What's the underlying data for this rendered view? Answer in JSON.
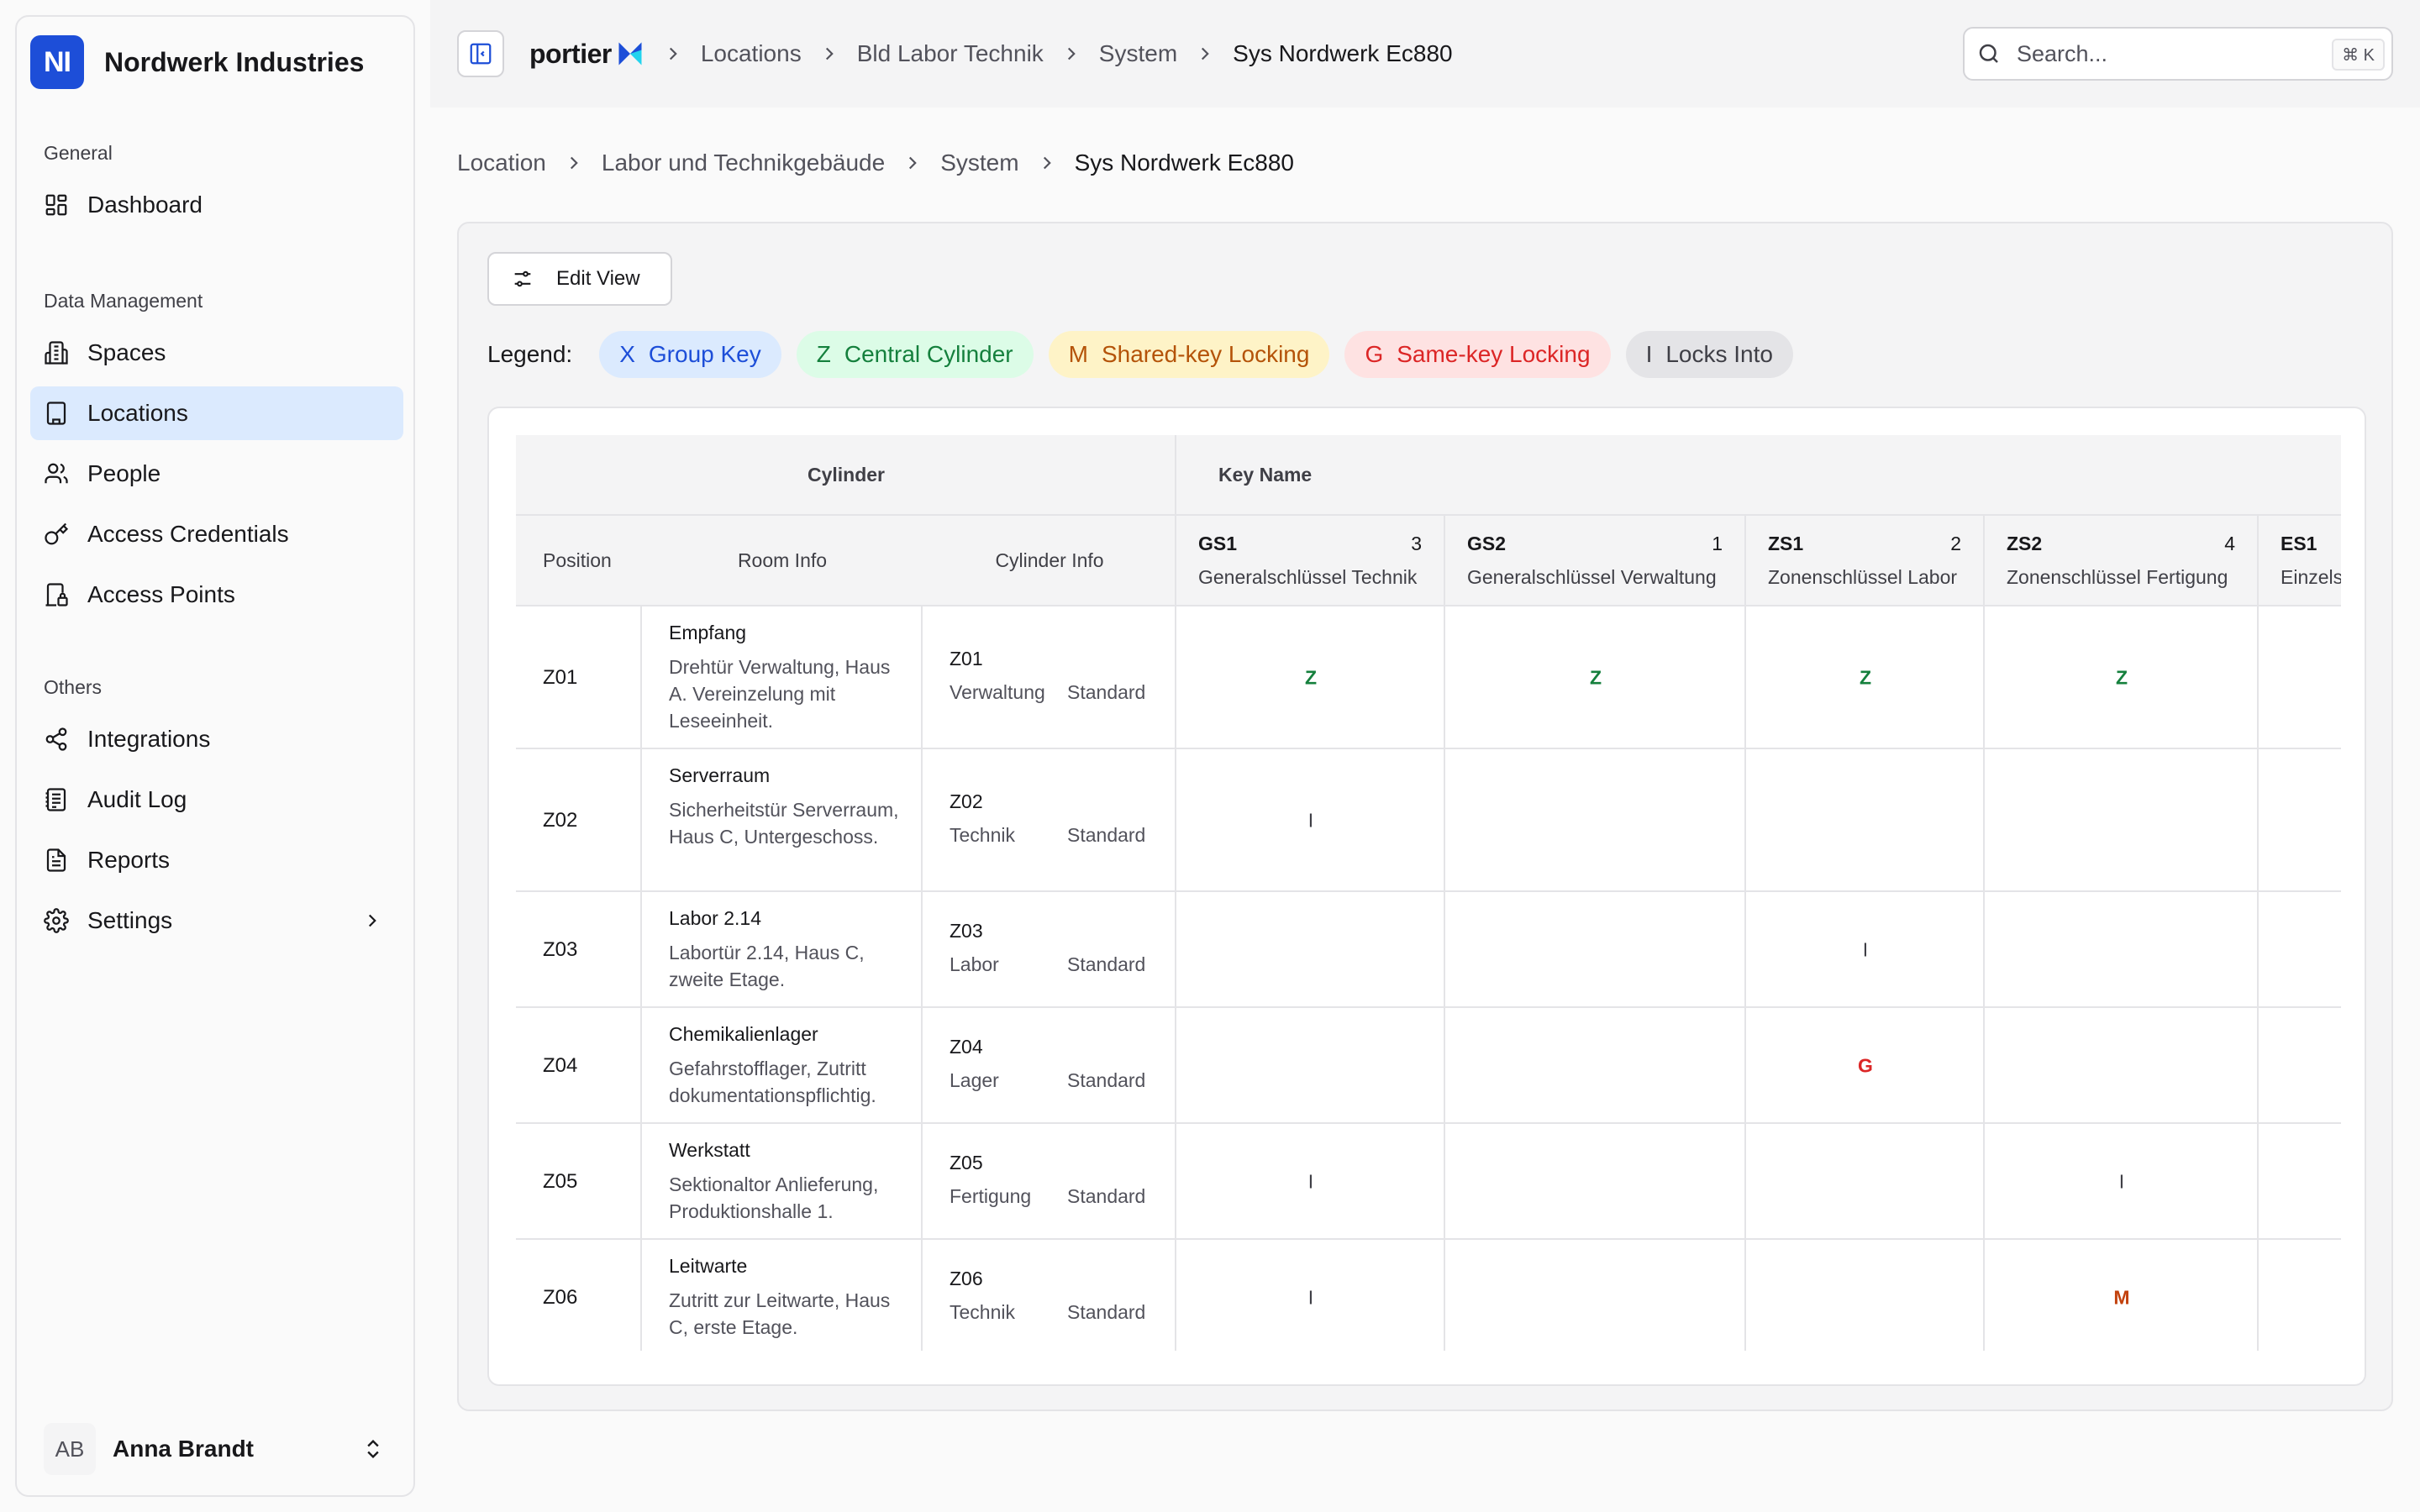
{
  "org": {
    "initials": "NI",
    "name": "Nordwerk Industries"
  },
  "nav": {
    "general": {
      "heading": "General",
      "items": [
        {
          "label": "Dashboard"
        }
      ]
    },
    "data": {
      "heading": "Data Management",
      "items": [
        {
          "label": "Spaces"
        },
        {
          "label": "Locations"
        },
        {
          "label": "People"
        },
        {
          "label": "Access Credentials"
        },
        {
          "label": "Access Points"
        }
      ]
    },
    "others": {
      "heading": "Others",
      "items": [
        {
          "label": "Integrations"
        },
        {
          "label": "Audit Log"
        },
        {
          "label": "Reports"
        },
        {
          "label": "Settings"
        }
      ]
    }
  },
  "user": {
    "initials": "AB",
    "name": "Anna Brandt"
  },
  "topbar": {
    "brand": "portier",
    "crumbs": [
      "Locations",
      "Bld Labor Technik",
      "System",
      "Sys Nordwerk Ec880"
    ],
    "search_placeholder": "Search...",
    "shortcut": "⌘ K"
  },
  "page_crumbs": [
    "Location",
    "Labor und Technikgebäude",
    "System",
    "Sys Nordwerk Ec880"
  ],
  "toolbar": {
    "edit_view": "Edit View"
  },
  "legend": {
    "label": "Legend:",
    "items": [
      {
        "code": "X",
        "label": "Group Key"
      },
      {
        "code": "Z",
        "label": "Central Cylinder"
      },
      {
        "code": "M",
        "label": "Shared-key Locking"
      },
      {
        "code": "G",
        "label": "Same-key Locking"
      },
      {
        "code": "I",
        "label": "Locks Into"
      }
    ]
  },
  "table": {
    "group_cylinder": "Cylinder",
    "group_key": "Key Name",
    "col_position": "Position",
    "col_room": "Room Info",
    "col_cylinder": "Cylinder Info",
    "keys": [
      {
        "code": "GS1",
        "count": "3",
        "name": "Generalschlüssel Technik"
      },
      {
        "code": "GS2",
        "count": "1",
        "name": "Generalschlüssel Verwaltung"
      },
      {
        "code": "ZS1",
        "count": "2",
        "name": "Zonenschlüssel Labor"
      },
      {
        "code": "ZS2",
        "count": "4",
        "name": "Zonenschlüssel Fertigung"
      },
      {
        "code": "ES1",
        "count": "",
        "name": "Einzelschlüssel"
      }
    ],
    "rows": [
      {
        "position": "Z01",
        "room": "Empfang",
        "desc": "Drehtür Verwaltung, Haus A. Vereinzelung mit Leseeinheit.",
        "cyl": "Z01",
        "dept": "Verwaltung",
        "type": "Standard",
        "marks": [
          "Z",
          "Z",
          "Z",
          "Z",
          ""
        ]
      },
      {
        "position": "Z02",
        "room": "Serverraum",
        "desc": "Sicherheitstür Serverraum, Haus C, Untergeschoss.",
        "cyl": "Z02",
        "dept": "Technik",
        "type": "Standard",
        "marks": [
          "I",
          "",
          "",
          "",
          ""
        ]
      },
      {
        "position": "Z03",
        "room": "Labor 2.14",
        "desc": "Labortür 2.14, Haus C, zweite Etage.",
        "cyl": "Z03",
        "dept": "Labor",
        "type": "Standard",
        "marks": [
          "",
          "",
          "I",
          "",
          ""
        ]
      },
      {
        "position": "Z04",
        "room": "Chemikalienlager",
        "desc": "Gefahrstofflager, Zutritt dokumentationspflichtig.",
        "cyl": "Z04",
        "dept": "Lager",
        "type": "Standard",
        "marks": [
          "",
          "",
          "G",
          "",
          ""
        ]
      },
      {
        "position": "Z05",
        "room": "Werkstatt",
        "desc": "Sektionaltor Anlieferung, Produktionshalle 1.",
        "cyl": "Z05",
        "dept": "Fertigung",
        "type": "Standard",
        "marks": [
          "I",
          "",
          "",
          "I",
          ""
        ]
      },
      {
        "position": "Z06",
        "room": "Leitwarte",
        "desc": "Zutritt zur Leitwarte, Haus C, erste Etage.",
        "cyl": "Z06",
        "dept": "Technik",
        "type": "Standard",
        "marks": [
          "I",
          "",
          "",
          "M",
          ""
        ]
      }
    ]
  }
}
